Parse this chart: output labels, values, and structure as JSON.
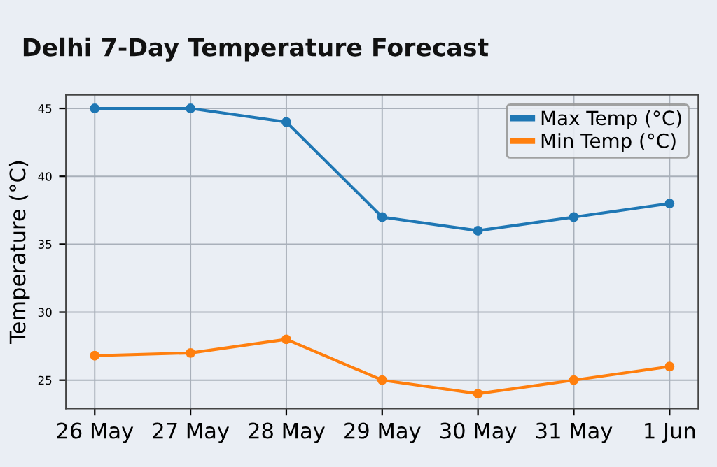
{
  "chart_data": {
    "type": "line",
    "title": "Delhi 7-Day Temperature Forecast",
    "ylabel": "Temperature (°C)",
    "categories": [
      "26 May",
      "27 May",
      "28 May",
      "29 May",
      "30 May",
      "31 May",
      "1 Jun"
    ],
    "series": [
      {
        "name": "Max Temp (°C)",
        "color": "#1f77b4",
        "values": [
          45,
          45,
          44,
          37,
          36,
          37,
          38
        ]
      },
      {
        "name": "Min Temp (°C)",
        "color": "#ff7f0e",
        "values": [
          26.8,
          27,
          28,
          25,
          24,
          25,
          26
        ]
      }
    ],
    "ylim": [
      22.9,
      46
    ],
    "yticks": [
      25,
      30,
      35,
      40,
      45
    ],
    "grid": true,
    "legend": "top right",
    "marker": "circle",
    "line_style": "solid"
  }
}
